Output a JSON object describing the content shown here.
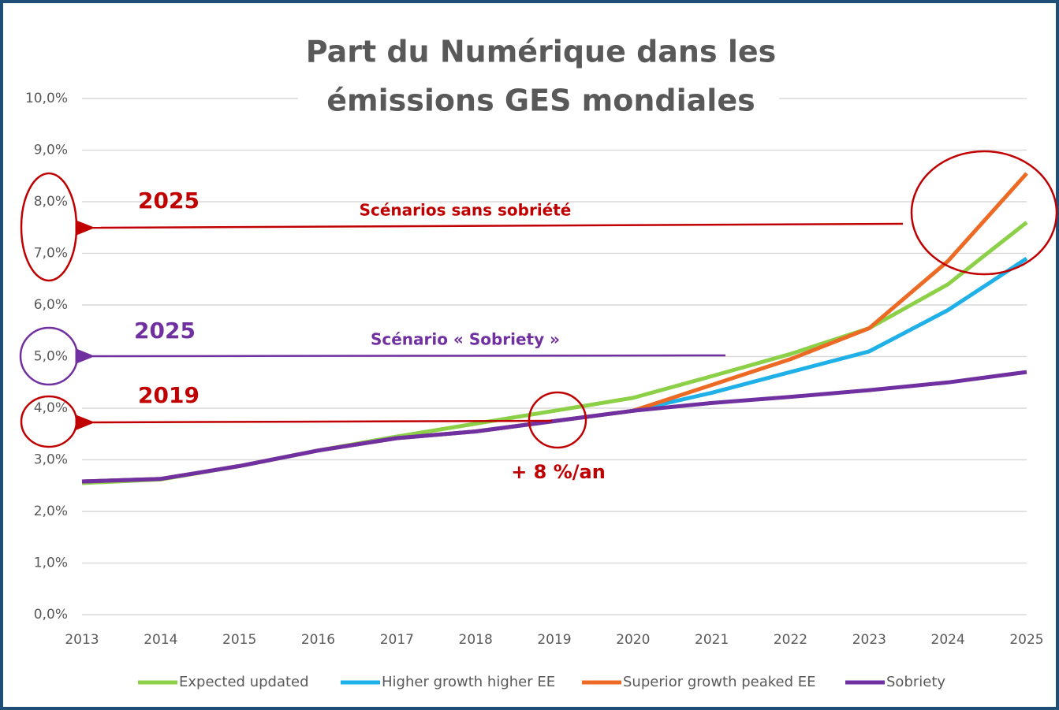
{
  "chart_data": {
    "type": "line",
    "title": [
      "Part du Numérique dans les",
      "émissions GES mondiales"
    ],
    "x": [
      2013,
      2014,
      2015,
      2016,
      2017,
      2018,
      2019,
      2020,
      2021,
      2022,
      2023,
      2024,
      2025
    ],
    "xlim": [
      2013,
      2025
    ],
    "xticks": [
      2013,
      2014,
      2015,
      2016,
      2017,
      2018,
      2019,
      2020,
      2021,
      2022,
      2023,
      2024,
      2025
    ],
    "ylim": [
      0,
      10
    ],
    "yticks": [
      {
        "value": 0,
        "label": "0,0%"
      },
      {
        "value": 1,
        "label": "1,0%"
      },
      {
        "value": 2,
        "label": "2,0%"
      },
      {
        "value": 3,
        "label": "3,0%"
      },
      {
        "value": 4,
        "label": "4,0%"
      },
      {
        "value": 5,
        "label": "5,0%"
      },
      {
        "value": 6,
        "label": "6,0%"
      },
      {
        "value": 7,
        "label": "7,0%"
      },
      {
        "value": 8,
        "label": "8,0%"
      },
      {
        "value": 9,
        "label": "9,0%"
      },
      {
        "value": 10,
        "label": "10,0%"
      }
    ],
    "grid": true,
    "legend": "bottom",
    "series": [
      {
        "name": "Expected updated",
        "color": "#8cd048",
        "values": [
          2.55,
          2.62,
          2.88,
          3.18,
          3.45,
          3.7,
          3.95,
          4.2,
          4.62,
          5.05,
          5.55,
          6.4,
          7.6
        ]
      },
      {
        "name": "Higher growth higher EE",
        "color": "#1fb0e8",
        "values": [
          2.58,
          2.63,
          2.88,
          3.18,
          3.42,
          3.55,
          3.75,
          3.95,
          4.3,
          4.7,
          5.1,
          5.9,
          6.9
        ]
      },
      {
        "name": "Superior growth peaked EE",
        "color": "#ec6a24",
        "values": [
          2.58,
          2.63,
          2.88,
          3.18,
          3.42,
          3.55,
          3.75,
          3.95,
          4.45,
          4.95,
          5.55,
          6.85,
          8.55
        ]
      },
      {
        "name": "Sobriety",
        "color": "#7030a0",
        "values": [
          2.58,
          2.63,
          2.88,
          3.18,
          3.42,
          3.55,
          3.75,
          3.95,
          4.1,
          4.22,
          4.35,
          4.5,
          4.7
        ]
      }
    ],
    "annotations": [
      {
        "text": "2025",
        "color": "#c00000"
      },
      {
        "text": "Scénarios sans sobriété",
        "color": "#c00000"
      },
      {
        "text": "2025",
        "color": "#7030a0"
      },
      {
        "text": "Scénario « Sobriety »",
        "color": "#7030a0"
      },
      {
        "text": "2019",
        "color": "#c00000"
      },
      {
        "text": "+ 8 %/an",
        "color": "#c00000"
      }
    ]
  }
}
